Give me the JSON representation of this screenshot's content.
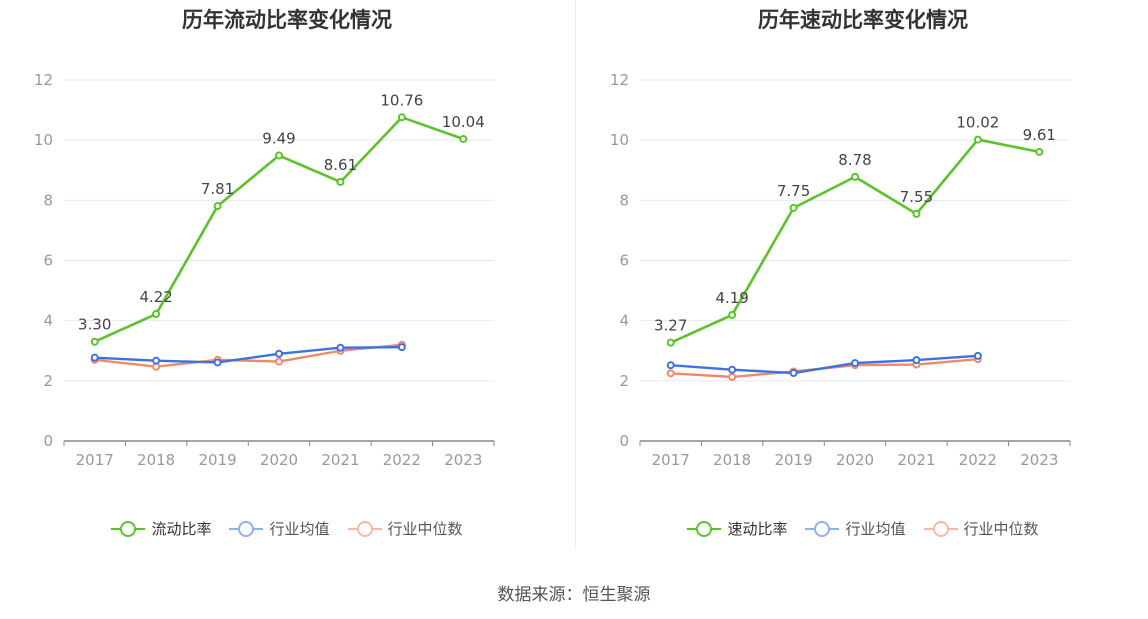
{
  "charts": [
    {
      "title": "历年流动比率变化情况",
      "legend": [
        "流动比率",
        "行业均值",
        "行业中位数"
      ]
    },
    {
      "title": "历年速动比率变化情况",
      "legend": [
        "速动比率",
        "行业均值",
        "行业中位数"
      ]
    }
  ],
  "source": "数据来源：恒生聚源",
  "chart_data": [
    {
      "type": "line",
      "title": "历年流动比率变化情况",
      "categories": [
        "2017",
        "2018",
        "2019",
        "2020",
        "2021",
        "2022",
        "2023"
      ],
      "ylim": [
        0,
        12
      ],
      "yticks": [
        0,
        2,
        4,
        6,
        8,
        10,
        12
      ],
      "grid": true,
      "legend_position": "bottom",
      "series": [
        {
          "name": "流动比率",
          "color": "#5cc22c",
          "values": [
            3.3,
            4.22,
            7.81,
            9.49,
            8.61,
            10.76,
            10.04
          ],
          "labels": [
            "3.30",
            "4.22",
            "7.81",
            "9.49",
            "8.61",
            "10.76",
            "10.04"
          ]
        },
        {
          "name": "行业均值",
          "color": "#3f72de",
          "values": [
            2.77,
            2.67,
            2.61,
            2.9,
            3.1,
            3.12,
            null
          ]
        },
        {
          "name": "行业中位数",
          "color": "#f08a66",
          "values": [
            2.7,
            2.47,
            2.7,
            2.64,
            3.0,
            3.2,
            null
          ]
        }
      ]
    },
    {
      "type": "line",
      "title": "历年速动比率变化情况",
      "categories": [
        "2017",
        "2018",
        "2019",
        "2020",
        "2021",
        "2022",
        "2023"
      ],
      "ylim": [
        0,
        12
      ],
      "yticks": [
        0,
        2,
        4,
        6,
        8,
        10,
        12
      ],
      "grid": true,
      "legend_position": "bottom",
      "series": [
        {
          "name": "速动比率",
          "color": "#5cc22c",
          "values": [
            3.27,
            4.19,
            7.75,
            8.78,
            7.55,
            10.02,
            9.61
          ],
          "labels": [
            "3.27",
            "4.19",
            "7.75",
            "8.78",
            "7.55",
            "10.02",
            "9.61"
          ]
        },
        {
          "name": "行业均值",
          "color": "#3f72de",
          "values": [
            2.52,
            2.37,
            2.26,
            2.59,
            2.69,
            2.83,
            null
          ]
        },
        {
          "name": "行业中位数",
          "color": "#f08a66",
          "values": [
            2.25,
            2.13,
            2.31,
            2.52,
            2.54,
            2.72,
            null
          ]
        }
      ]
    }
  ]
}
